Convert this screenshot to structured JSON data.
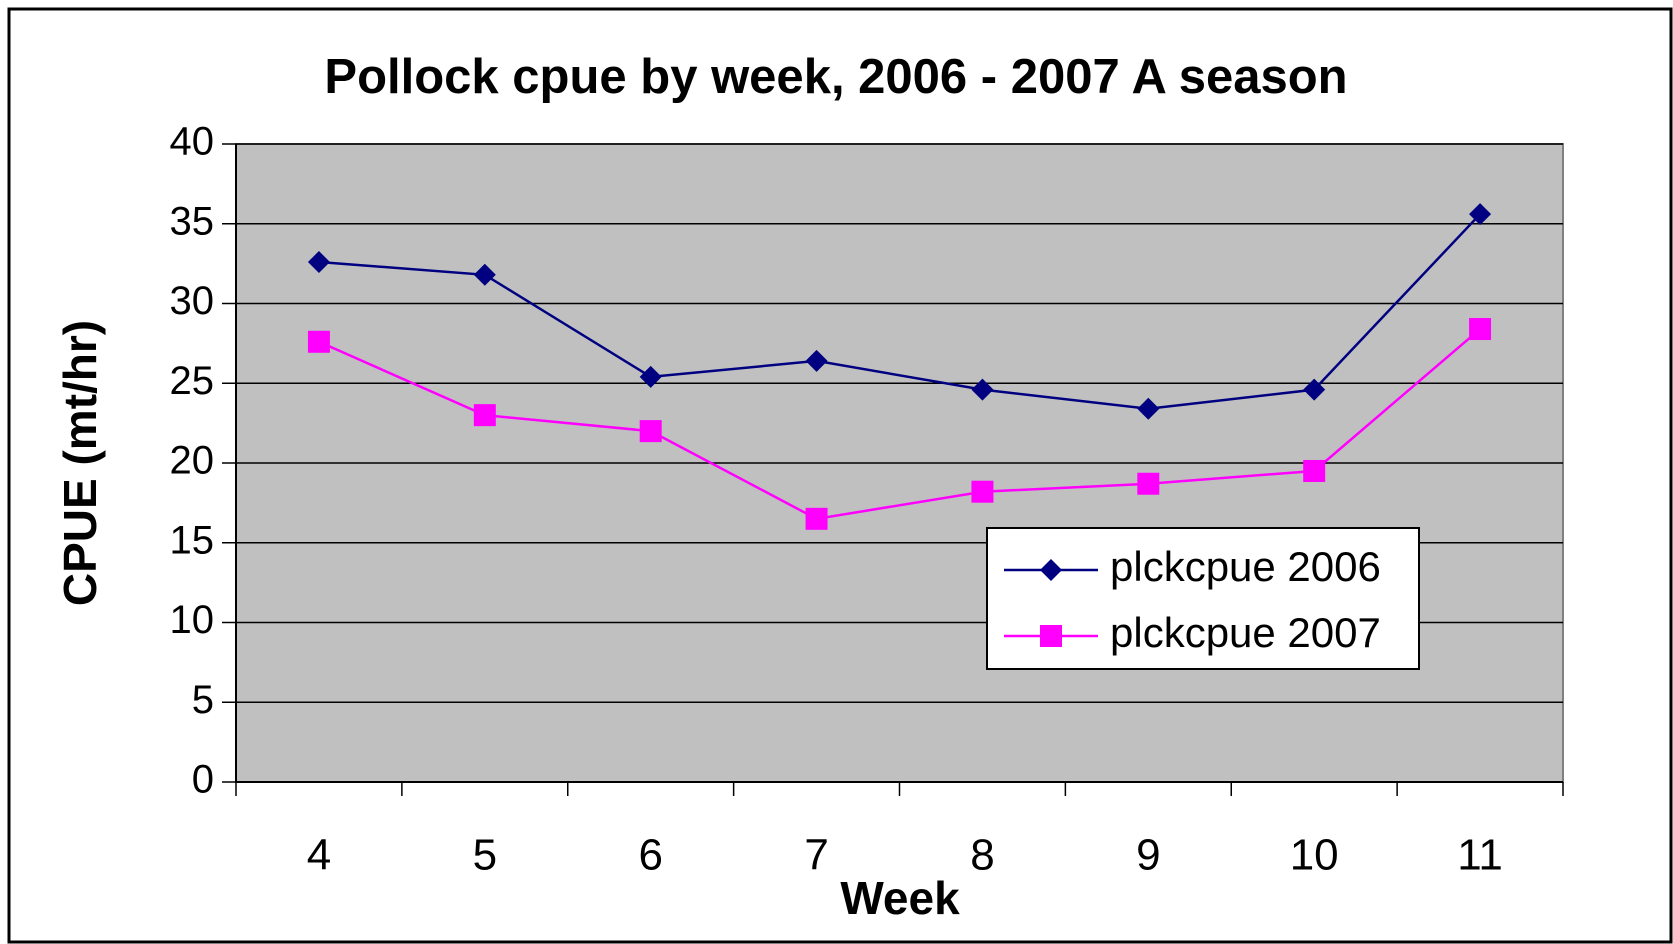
{
  "chart_data": {
    "type": "line",
    "title": "Pollock cpue by week, 2006 - 2007 A season",
    "x_label": "Week",
    "y_label": "CPUE (mt/hr)",
    "categories": [
      "4",
      "5",
      "6",
      "7",
      "8",
      "9",
      "10",
      "11"
    ],
    "series": [
      {
        "name": "plckcpue 2006",
        "color": "#000080",
        "marker": "diamond",
        "values": [
          32.6,
          31.8,
          25.4,
          26.4,
          24.6,
          23.4,
          24.6,
          35.6
        ]
      },
      {
        "name": "plckcpue 2007",
        "color": "#ff00ff",
        "marker": "square",
        "values": [
          27.6,
          23.0,
          22.0,
          16.5,
          18.2,
          18.7,
          19.5,
          28.4
        ]
      }
    ],
    "ylim": [
      0,
      40
    ],
    "yticks": [
      0,
      5,
      10,
      15,
      20,
      25,
      30,
      35,
      40
    ],
    "grid": true
  }
}
